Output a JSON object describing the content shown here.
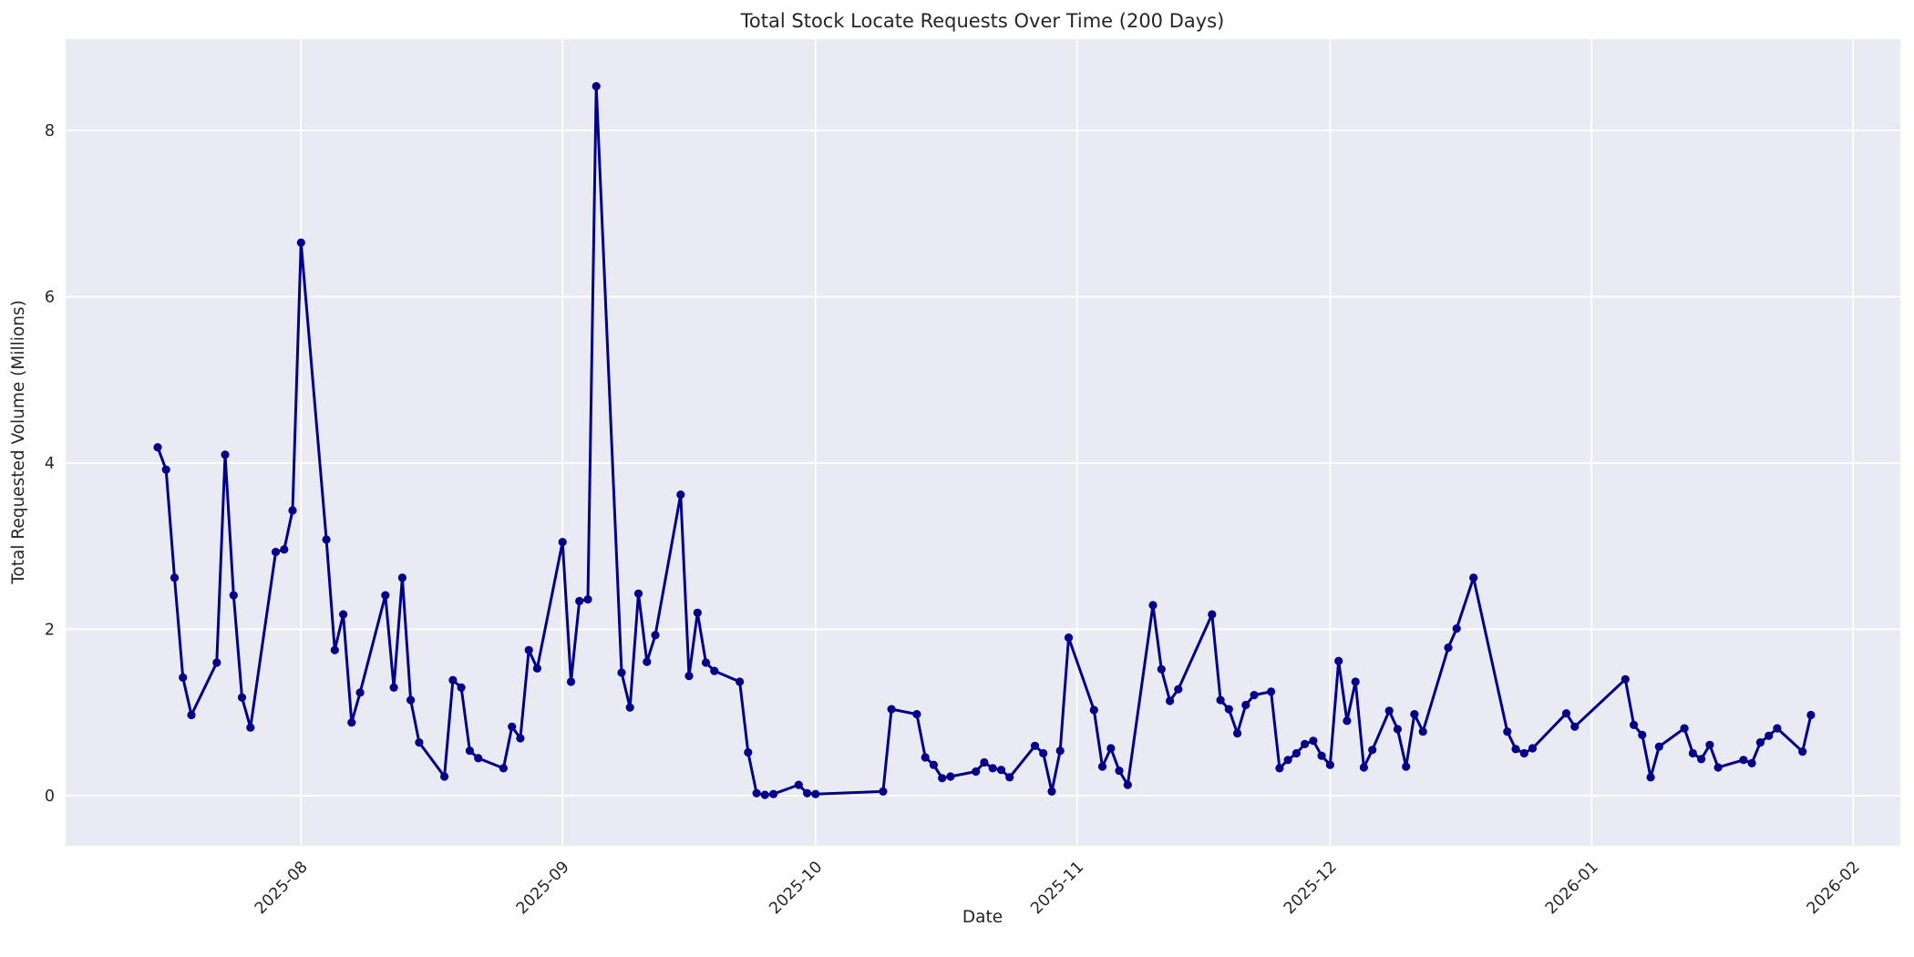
{
  "figure": {
    "title": "Total Stock Locate Requests Over Time (200 Days)",
    "xlabel": "Date",
    "ylabel": "Total Requested Volume (Millions)"
  },
  "colors": {
    "background": "#ffffff",
    "plot_background": "#eaeaf2",
    "grid": "#ffffff",
    "line": "#00008b",
    "text": "#262626"
  },
  "axes": {
    "y_ticks": [
      0,
      2,
      4,
      6,
      8
    ],
    "x_ticks": [
      {
        "label": "2025-08",
        "date": "2025-08-01"
      },
      {
        "label": "2025-09",
        "date": "2025-09-01"
      },
      {
        "label": "2025-10",
        "date": "2025-10-01"
      },
      {
        "label": "2025-11",
        "date": "2025-11-01"
      },
      {
        "label": "2025-12",
        "date": "2025-12-01"
      },
      {
        "label": "2026-01",
        "date": "2026-01-01"
      },
      {
        "label": "2026-02",
        "date": "2026-02-01"
      }
    ]
  },
  "chart_data": {
    "type": "line",
    "title": "Total Stock Locate Requests Over Time (200 Days)",
    "xlabel": "Date",
    "ylabel": "Total Requested Volume (Millions)",
    "ylim": [
      -0.45,
      9.1
    ],
    "x_range": [
      "2025-07-15",
      "2026-01-27"
    ],
    "grid": true,
    "legend": false,
    "line_color": "#00008b",
    "marker": "circle",
    "series": [
      {
        "name": "Total Stock Locate Requests",
        "x": [
          "2025-07-15",
          "2025-07-16",
          "2025-07-17",
          "2025-07-18",
          "2025-07-19",
          "2025-07-22",
          "2025-07-23",
          "2025-07-24",
          "2025-07-25",
          "2025-07-26",
          "2025-07-29",
          "2025-07-30",
          "2025-07-31",
          "2025-08-01",
          "2025-08-04",
          "2025-08-05",
          "2025-08-06",
          "2025-08-07",
          "2025-08-08",
          "2025-08-11",
          "2025-08-12",
          "2025-08-13",
          "2025-08-14",
          "2025-08-15",
          "2025-08-18",
          "2025-08-19",
          "2025-08-20",
          "2025-08-21",
          "2025-08-22",
          "2025-08-25",
          "2025-08-26",
          "2025-08-27",
          "2025-08-28",
          "2025-08-29",
          "2025-09-01",
          "2025-09-02",
          "2025-09-03",
          "2025-09-04",
          "2025-09-05",
          "2025-09-08",
          "2025-09-09",
          "2025-09-10",
          "2025-09-11",
          "2025-09-12",
          "2025-09-15",
          "2025-09-16",
          "2025-09-17",
          "2025-09-18",
          "2025-09-19",
          "2025-09-22",
          "2025-09-23",
          "2025-09-24",
          "2025-09-25",
          "2025-09-26",
          "2025-09-29",
          "2025-09-30",
          "2025-10-01",
          "2025-10-09",
          "2025-10-10",
          "2025-10-13",
          "2025-10-14",
          "2025-10-15",
          "2025-10-16",
          "2025-10-17",
          "2025-10-20",
          "2025-10-21",
          "2025-10-22",
          "2025-10-23",
          "2025-10-24",
          "2025-10-27",
          "2025-10-28",
          "2025-10-29",
          "2025-10-30",
          "2025-10-31",
          "2025-11-03",
          "2025-11-04",
          "2025-11-05",
          "2025-11-06",
          "2025-11-07",
          "2025-11-10",
          "2025-11-11",
          "2025-11-12",
          "2025-11-13",
          "2025-11-17",
          "2025-11-18",
          "2025-11-19",
          "2025-11-20",
          "2025-11-21",
          "2025-11-22",
          "2025-11-24",
          "2025-11-25",
          "2025-11-26",
          "2025-11-27",
          "2025-11-28",
          "2025-11-29",
          "2025-11-30",
          "2025-12-01",
          "2025-12-02",
          "2025-12-03",
          "2025-12-04",
          "2025-12-05",
          "2025-12-06",
          "2025-12-08",
          "2025-12-09",
          "2025-12-10",
          "2025-12-11",
          "2025-12-12",
          "2025-12-15",
          "2025-12-16",
          "2025-12-18",
          "2025-12-22",
          "2025-12-23",
          "2025-12-24",
          "2025-12-25",
          "2025-12-29",
          "2025-12-30",
          "2026-01-05",
          "2026-01-06",
          "2026-01-07",
          "2026-01-08",
          "2026-01-09",
          "2026-01-12",
          "2026-01-13",
          "2026-01-14",
          "2026-01-15",
          "2026-01-16",
          "2026-01-19",
          "2026-01-20",
          "2026-01-21",
          "2026-01-22",
          "2026-01-23",
          "2026-01-26",
          "2026-01-27"
        ],
        "y": [
          4.19,
          3.92,
          2.62,
          1.42,
          0.97,
          1.6,
          4.1,
          2.41,
          1.18,
          0.82,
          2.93,
          2.96,
          3.43,
          6.65,
          3.08,
          1.75,
          2.18,
          0.88,
          1.24,
          2.41,
          1.3,
          2.62,
          1.15,
          0.64,
          0.23,
          1.39,
          1.3,
          0.54,
          0.45,
          0.33,
          0.83,
          0.69,
          1.75,
          1.53,
          3.05,
          1.37,
          2.34,
          2.36,
          8.53,
          1.48,
          1.06,
          2.43,
          1.61,
          1.93,
          3.62,
          1.44,
          2.2,
          1.6,
          1.5,
          1.37,
          0.52,
          0.03,
          0.01,
          0.02,
          0.13,
          0.03,
          0.02,
          0.05,
          1.04,
          0.98,
          0.46,
          0.37,
          0.21,
          0.23,
          0.29,
          0.4,
          0.33,
          0.31,
          0.22,
          0.6,
          0.51,
          0.05,
          0.54,
          1.9,
          1.03,
          0.35,
          0.57,
          0.3,
          0.13,
          2.29,
          1.52,
          1.14,
          1.28,
          2.18,
          1.15,
          1.04,
          0.75,
          1.09,
          1.21,
          1.25,
          0.33,
          0.43,
          0.51,
          0.62,
          0.66,
          0.48,
          0.37,
          1.62,
          0.9,
          1.37,
          0.34,
          0.55,
          1.02,
          0.8,
          0.35,
          0.98,
          0.77,
          1.78,
          2.01,
          2.62,
          0.77,
          0.56,
          0.51,
          0.57,
          0.99,
          0.83,
          1.4,
          0.85,
          0.73,
          0.22,
          0.59,
          0.81,
          0.51,
          0.44,
          0.61,
          0.34,
          0.43,
          0.39,
          0.64,
          0.72,
          0.81,
          0.53,
          0.97
        ]
      }
    ]
  }
}
